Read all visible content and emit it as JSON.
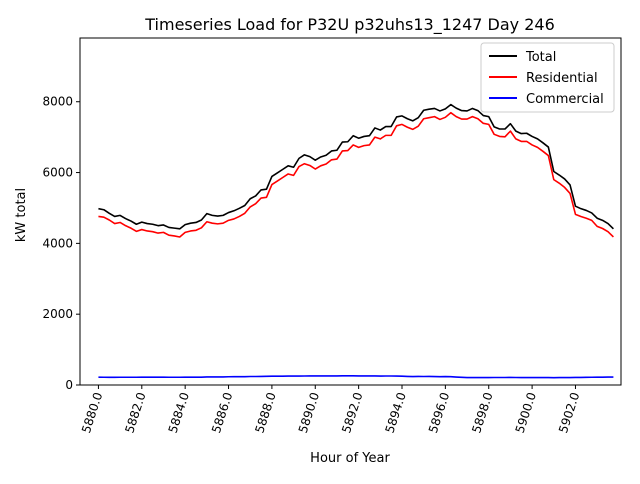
{
  "chart_data": {
    "type": "line",
    "title": "Timeseries Load for P32U p32uhs13_1247  Day 246",
    "xlabel": "Hour of Year",
    "ylabel": "kW total",
    "xlim": [
      5879.15,
      5904.1
    ],
    "ylim": [
      0,
      9800
    ],
    "x_ticks": [
      5880,
      5882,
      5884,
      5886,
      5888,
      5890,
      5892,
      5894,
      5896,
      5898,
      5900,
      5902
    ],
    "x_tick_labels": [
      "5880.0",
      "5882.0",
      "5884.0",
      "5886.0",
      "5888.0",
      "5890.0",
      "5892.0",
      "5894.0",
      "5896.0",
      "5898.0",
      "5900.0",
      "5902.0"
    ],
    "y_ticks": [
      0,
      2000,
      4000,
      6000,
      8000
    ],
    "y_tick_labels": [
      "0",
      "2000",
      "4000",
      "6000",
      "8000"
    ],
    "grid": false,
    "legend_position": "top-right",
    "x": [
      5880,
      5880.25,
      5880.5,
      5880.75,
      5881,
      5881.25,
      5881.5,
      5881.75,
      5882,
      5882.25,
      5882.5,
      5882.75,
      5883,
      5883.25,
      5883.5,
      5883.75,
      5884,
      5884.25,
      5884.5,
      5884.75,
      5885,
      5885.25,
      5885.5,
      5885.75,
      5886,
      5886.25,
      5886.5,
      5886.75,
      5887,
      5887.25,
      5887.5,
      5887.75,
      5888,
      5888.25,
      5888.5,
      5888.75,
      5889,
      5889.25,
      5889.5,
      5889.75,
      5890,
      5890.25,
      5890.5,
      5890.75,
      5891,
      5891.25,
      5891.5,
      5891.75,
      5892,
      5892.25,
      5892.5,
      5892.75,
      5893,
      5893.25,
      5893.5,
      5893.75,
      5894,
      5894.25,
      5894.5,
      5894.75,
      5895,
      5895.25,
      5895.5,
      5895.75,
      5896,
      5896.25,
      5896.5,
      5896.75,
      5897,
      5897.25,
      5897.5,
      5897.75,
      5898,
      5898.25,
      5898.5,
      5898.75,
      5899,
      5899.25,
      5899.5,
      5899.75,
      5900,
      5900.25,
      5900.5,
      5900.75,
      5901,
      5901.25,
      5901.5,
      5901.75,
      5902,
      5902.25,
      5902.5,
      5902.75,
      5903,
      5903.25,
      5903.5,
      5903.75
    ],
    "series": [
      {
        "name": "Total",
        "color": "#000000",
        "values": [
          4980,
          4950,
          4850,
          4760,
          4790,
          4700,
          4630,
          4540,
          4600,
          4560,
          4540,
          4500,
          4520,
          4450,
          4430,
          4410,
          4530,
          4570,
          4590,
          4660,
          4840,
          4790,
          4770,
          4790,
          4870,
          4920,
          4990,
          5070,
          5260,
          5340,
          5510,
          5530,
          5890,
          5990,
          6090,
          6190,
          6150,
          6400,
          6500,
          6450,
          6350,
          6440,
          6490,
          6610,
          6630,
          6860,
          6870,
          7040,
          6970,
          7020,
          7040,
          7260,
          7200,
          7300,
          7300,
          7570,
          7600,
          7520,
          7460,
          7550,
          7760,
          7790,
          7810,
          7740,
          7800,
          7920,
          7820,
          7750,
          7740,
          7810,
          7750,
          7610,
          7580,
          7290,
          7230,
          7230,
          7380,
          7170,
          7100,
          7110,
          7020,
          6950,
          6840,
          6720,
          6030,
          5930,
          5820,
          5650,
          5050,
          4980,
          4930,
          4860,
          4710,
          4650,
          4560,
          4410
        ]
      },
      {
        "name": "Residential",
        "color": "#ff0000",
        "values": [
          4760,
          4740,
          4660,
          4560,
          4590,
          4500,
          4430,
          4340,
          4390,
          4350,
          4330,
          4290,
          4310,
          4230,
          4210,
          4180,
          4310,
          4350,
          4370,
          4440,
          4610,
          4570,
          4550,
          4570,
          4650,
          4690,
          4760,
          4850,
          5030,
          5120,
          5280,
          5300,
          5660,
          5760,
          5860,
          5960,
          5920,
          6170,
          6250,
          6200,
          6100,
          6190,
          6240,
          6360,
          6380,
          6610,
          6620,
          6780,
          6710,
          6760,
          6780,
          7000,
          6950,
          7050,
          7050,
          7320,
          7360,
          7280,
          7220,
          7310,
          7520,
          7550,
          7580,
          7500,
          7560,
          7690,
          7580,
          7510,
          7510,
          7580,
          7520,
          7390,
          7360,
          7080,
          7020,
          7010,
          7170,
          6950,
          6880,
          6880,
          6780,
          6710,
          6600,
          6480,
          5800,
          5700,
          5580,
          5410,
          4820,
          4760,
          4710,
          4650,
          4480,
          4420,
          4330,
          4180
        ]
      },
      {
        "name": "Commercial",
        "color": "#0000ff",
        "values": [
          220,
          219,
          218,
          218,
          219,
          219,
          219,
          219,
          220,
          220,
          220,
          220,
          220,
          219,
          219,
          219,
          220,
          220,
          221,
          222,
          229,
          228,
          227,
          229,
          233,
          234,
          235,
          236,
          240,
          240,
          242,
          244,
          248,
          249,
          250,
          251,
          253,
          253,
          254,
          255,
          255,
          255,
          256,
          256,
          257,
          258,
          258,
          259,
          257,
          257,
          257,
          255,
          253,
          254,
          254,
          251,
          248,
          243,
          238,
          241,
          240,
          243,
          238,
          234,
          237,
          234,
          224,
          216,
          211,
          209,
          209,
          211,
          211,
          212,
          212,
          212,
          213,
          212,
          211,
          211,
          210,
          210,
          209,
          209,
          208,
          209,
          210,
          211,
          214,
          215,
          217,
          219,
          221,
          222,
          223,
          224
        ]
      }
    ]
  }
}
